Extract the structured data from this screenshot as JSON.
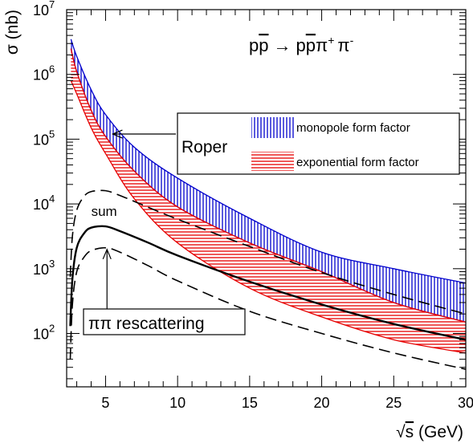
{
  "chart_data": {
    "type": "line",
    "y_scale": "log",
    "xlim": [
      2.3,
      30
    ],
    "ylim": [
      15,
      10000000
    ],
    "xlabel_prefix": "√",
    "xlabel_var": "s",
    "xlabel_unit": " (GeV)",
    "ylabel": "σ (nb)",
    "x_ticks": [
      5,
      10,
      15,
      20,
      25,
      30
    ],
    "y_ticks": [
      {
        "base": "10",
        "exp": "2",
        "value": 100
      },
      {
        "base": "10",
        "exp": "3",
        "value": 1000
      },
      {
        "base": "10",
        "exp": "4",
        "value": 10000
      },
      {
        "base": "10",
        "exp": "5",
        "value": 100000
      },
      {
        "base": "10",
        "exp": "6",
        "value": 1000000
      },
      {
        "base": "10",
        "exp": "7",
        "value": 10000000
      }
    ],
    "process_title": {
      "p1": "p",
      "p1bar": "p",
      "arrow": "→",
      "p2": "p",
      "p2bar": "p",
      "pi_plus": "π",
      "plus_sup": "+",
      "pi_minus": "π",
      "minus_sup": "-"
    },
    "series": [
      {
        "name": "monopole form factor",
        "kind": "band",
        "color": "#0000cc",
        "x": [
          2.6,
          3,
          4,
          5,
          7,
          10,
          15,
          20,
          25,
          30
        ],
        "upper": [
          3500000,
          1900000,
          580000,
          240000,
          75000,
          25000,
          6000,
          1800,
          1000,
          600
        ],
        "lower": [
          2500000,
          1100000,
          280000,
          110000,
          32000,
          9000,
          2500,
          900,
          300,
          150
        ]
      },
      {
        "name": "exponential form factor",
        "kind": "band",
        "color": "#e60000",
        "x": [
          2.6,
          3,
          4,
          5,
          7,
          10,
          15,
          20,
          25,
          30
        ],
        "upper": [
          2500000,
          1100000,
          280000,
          110000,
          32000,
          9000,
          2500,
          900,
          300,
          150
        ],
        "lower": [
          800000,
          500000,
          150000,
          60000,
          12000,
          2500,
          500,
          180,
          80,
          50
        ]
      },
      {
        "kind": "line",
        "style": "solid",
        "color": "#000000",
        "x": [
          2.55,
          2.7,
          3,
          3.5,
          4,
          5,
          6,
          8,
          10,
          15,
          20,
          25,
          30
        ],
        "y": [
          130,
          700,
          2100,
          3500,
          4300,
          4500,
          3800,
          2500,
          1600,
          630,
          280,
          140,
          80
        ]
      },
      {
        "kind": "line",
        "style": "dashed",
        "color": "#000000",
        "x": [
          2.55,
          2.7,
          3,
          3.5,
          4,
          5,
          6,
          8,
          10,
          15,
          20,
          25,
          30
        ],
        "y": [
          750,
          3200,
          8000,
          13000,
          15500,
          16000,
          13500,
          8800,
          5800,
          2200,
          870,
          400,
          200
        ]
      },
      {
        "kind": "line",
        "style": "dashed",
        "color": "#000000",
        "x": [
          2.55,
          2.7,
          3,
          3.5,
          4,
          5,
          6,
          8,
          10,
          15,
          20,
          25,
          30
        ],
        "y": [
          40,
          280,
          900,
          1500,
          1900,
          2100,
          1800,
          1100,
          650,
          220,
          100,
          50,
          28
        ]
      }
    ],
    "legend": {
      "roper_label": "Roper",
      "entries": [
        {
          "label": "monopole form factor",
          "pattern": "vlines",
          "color": "#0000cc"
        },
        {
          "label": "exponential form factor",
          "pattern": "hlines",
          "color": "#e60000"
        }
      ]
    },
    "annotations": [
      {
        "text": "sum",
        "at_x": 4.9,
        "at_y": 6500
      },
      {
        "text": "ππ rescattering",
        "arrow_to_x": 5.1,
        "arrow_to_y": 2100
      },
      {
        "text": "Roper",
        "arrow_to_x": 5.5,
        "arrow_to_y": 120000
      }
    ]
  }
}
